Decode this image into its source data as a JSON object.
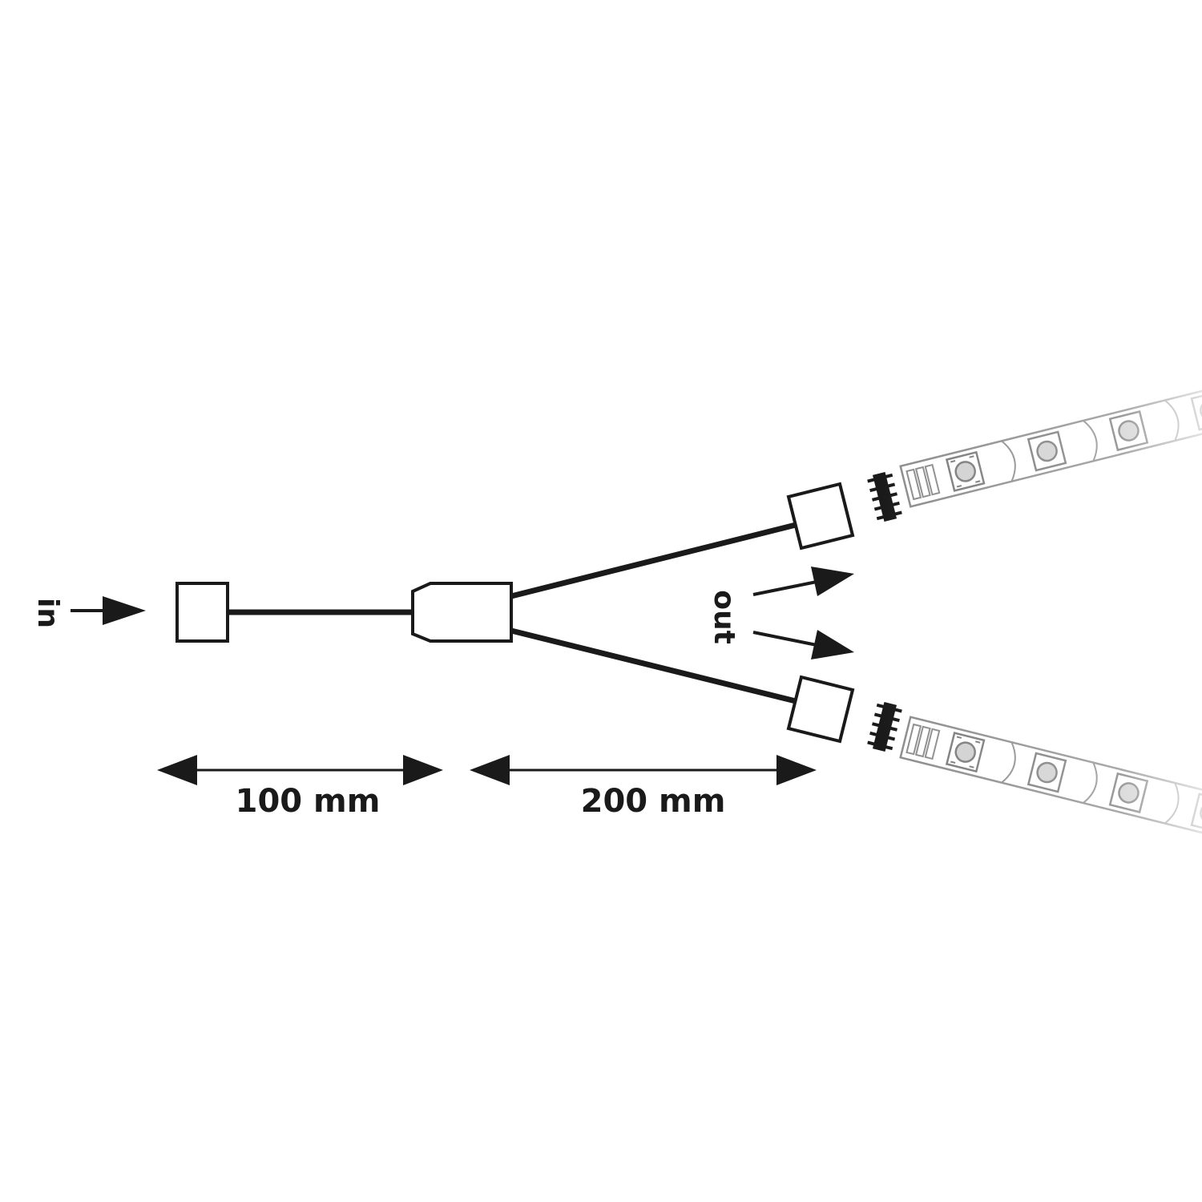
{
  "labels": {
    "input": "in",
    "output": "out"
  },
  "dimensions": {
    "first_segment": "100 mm",
    "second_segment": "200 mm"
  },
  "colors": {
    "line": "#1a1a1a",
    "strip": "#9a9a9a",
    "background": "#ffffff"
  }
}
